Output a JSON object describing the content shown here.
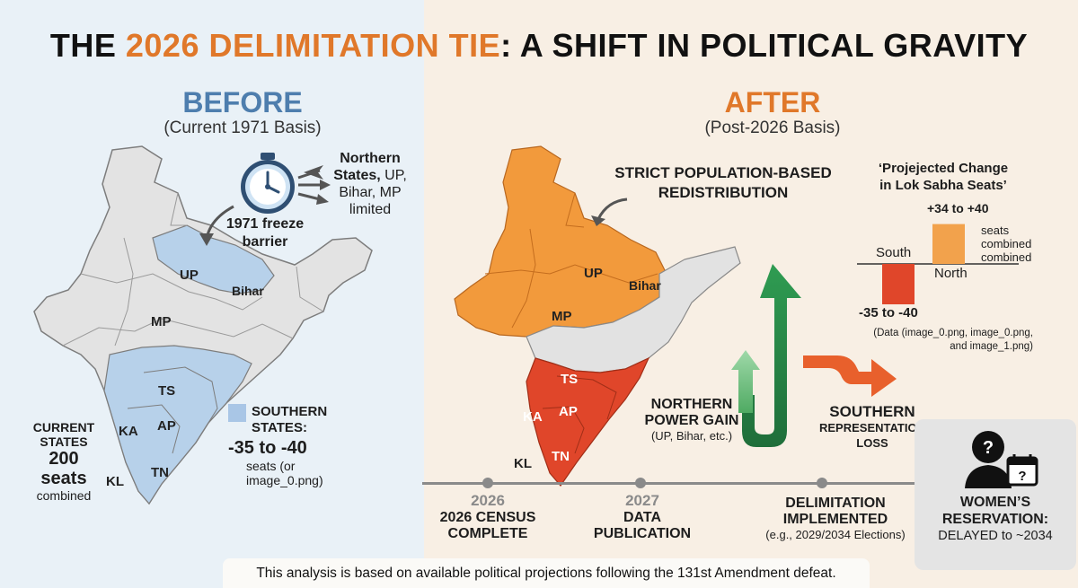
{
  "title": {
    "part1": "THE ",
    "highlight": "2026 DELIMITATION TIE",
    "part2": ": A SHIFT IN POLITICAL GRAVITY"
  },
  "before": {
    "heading": "BEFORE",
    "subheading": "(Current 1971 Basis)",
    "freeze_label_1": "1971 freeze",
    "freeze_label_2": "barrier",
    "northern_note": [
      "Northern",
      "States, UP,",
      "Bihar, MP",
      "limited"
    ],
    "map_labels": {
      "up": "UP",
      "bihar": "Bihar",
      "mp": "MP",
      "ts": "TS",
      "ka": "KA",
      "ap": "AP",
      "tn": "TN",
      "kl": "KL"
    },
    "current_states": {
      "line1": "CURRENT",
      "line2": "STATES",
      "value": "200",
      "unit": "seats",
      "note": "combined"
    },
    "southern_legend": {
      "line1": "SOUTHERN",
      "line2": "STATES:",
      "value": "-35 to -40",
      "note1": "seats (or",
      "note2": "image_0.png)"
    }
  },
  "after": {
    "heading": "AFTER",
    "subheading": "(Post-2026 Basis)",
    "redistribution": [
      "STRICT POPULATION-BASED",
      "REDISTRIBUTION"
    ],
    "map_labels": {
      "up": "UP",
      "bihar": "Bihar",
      "mp": "MP",
      "ts": "TS",
      "ka": "KA",
      "ap": "AP",
      "tn": "TN",
      "kl": "KL"
    },
    "northern_gain": {
      "line1": "NORTHERN",
      "line2": "POWER GAIN",
      "note": "(UP, Bihar, etc.)"
    },
    "southern_loss": {
      "line1": "SOUTHERN",
      "line2": "REPRESENTATION",
      "line3": "LOSS"
    }
  },
  "projection": {
    "title_1": "‘Projejected Change",
    "title_2": "in Lok Sabha Seats’",
    "north_range": "+34 to +40",
    "north_note_1": "seats",
    "north_note_2": "combined",
    "north_note_3": "combined",
    "south_label": "South",
    "north_label": "North",
    "south_range": "-35 to -40",
    "data_note_1": "(Data (image_0.png, image_0.png,",
    "data_note_2": "and image_1.png)"
  },
  "chart_data": {
    "type": "bar",
    "categories": [
      "South",
      "North"
    ],
    "values": [
      -37.5,
      37
    ],
    "title": "‘Projejected Change in Lok Sabha Seats’",
    "ranges": {
      "South": [
        -35,
        -40
      ],
      "North": [
        34,
        40
      ]
    },
    "colors": {
      "South": "#e0462a",
      "North": "#f2a24c"
    }
  },
  "timeline": [
    {
      "year": "2026",
      "line1": "2026 CENSUS",
      "line2": "COMPLETE",
      "note": ""
    },
    {
      "year": "2027",
      "line1": "DATA",
      "line2": "PUBLICATION",
      "note": ""
    },
    {
      "year": "",
      "line1": "DELIMITATION",
      "line2": "IMPLEMENTED",
      "note": "(e.g., 2029/2034 Elections)"
    }
  ],
  "women": {
    "line1": "WOMEN’S",
    "line2": "RESERVATION:",
    "line3": "DELAYED to ~2034"
  },
  "footer": "This analysis is based on available political projections following the 131st Amendment defeat.",
  "colors": {
    "blue": "#b7d1ea",
    "blue_dark": "#4e7eae",
    "orange": "#f29a3c",
    "red": "#e0462a",
    "green": "#3d9b54",
    "grey_map": "#e2e2e2"
  }
}
